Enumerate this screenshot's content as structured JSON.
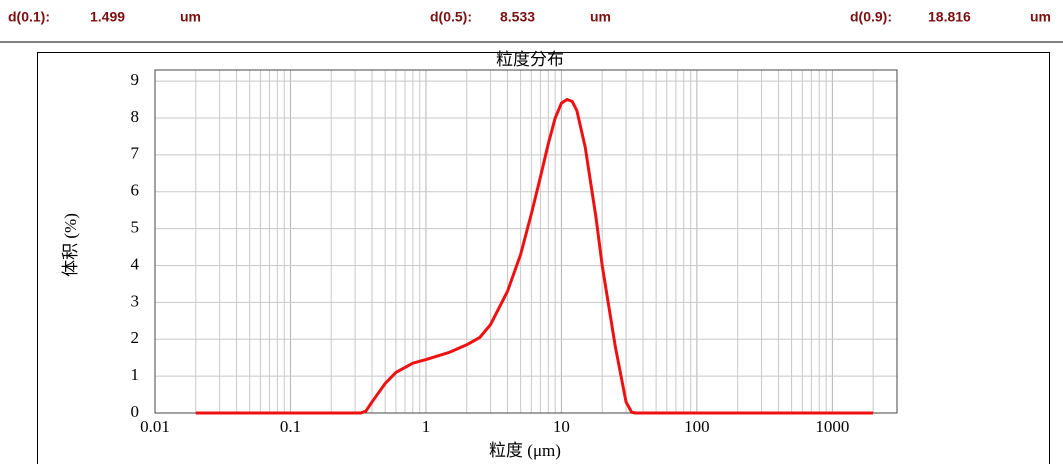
{
  "stats": [
    {
      "label": "d(0.1):",
      "value": 1.499,
      "unit": "um"
    },
    {
      "label": "d(0.5):",
      "value": 8.533,
      "unit": "um"
    },
    {
      "label": "d(0.9):",
      "value": 18.816,
      "unit": "um"
    }
  ],
  "chart_data": {
    "type": "line",
    "title": "粒度分布",
    "x_label": "粒度 (μm)",
    "y_label": "体积 (%)",
    "x_scale": "log",
    "grid": true,
    "color": "#ee1111",
    "xlim": [
      0.01,
      3000
    ],
    "xticks": [
      0.01,
      0.1,
      1,
      10,
      100,
      1000
    ],
    "ylim": [
      0,
      9.3
    ],
    "yticks": [
      0,
      1,
      2,
      3,
      4,
      5,
      6,
      7,
      8,
      9
    ],
    "x": [
      0.02,
      0.1,
      0.33,
      0.36,
      0.4,
      0.5,
      0.6,
      0.8,
      1,
      1.5,
      2,
      2.5,
      3,
      4,
      5,
      6,
      7,
      8,
      9,
      10,
      11,
      12,
      13,
      15,
      18,
      20,
      25,
      30,
      33,
      35,
      100,
      2000
    ],
    "values": [
      0,
      0,
      0,
      0.05,
      0.3,
      0.8,
      1.1,
      1.35,
      1.45,
      1.65,
      1.85,
      2.05,
      2.4,
      3.3,
      4.3,
      5.4,
      6.4,
      7.3,
      8.0,
      8.4,
      8.5,
      8.45,
      8.2,
      7.2,
      5.3,
      4.0,
      1.8,
      0.3,
      0.02,
      0,
      0,
      0
    ]
  }
}
